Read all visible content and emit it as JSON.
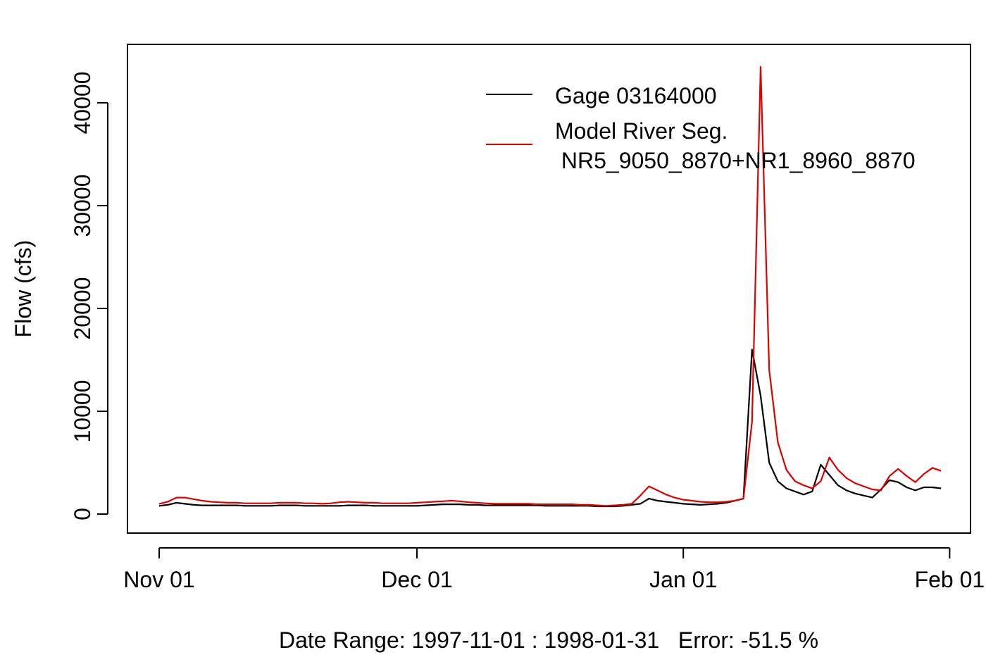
{
  "chart_data": {
    "type": "line",
    "title": "",
    "xlabel": "Date Range: 1997-11-01 : 1998-01-31   Error: -51.5 %",
    "ylabel": "Flow (cfs)",
    "xlim": [
      "1997-11-01",
      "1998-01-31"
    ],
    "ylim": [
      0,
      44000
    ],
    "x_ticks": [
      {
        "date": "1997-11-01",
        "label": "Nov 01"
      },
      {
        "date": "1997-12-01",
        "label": "Dec 01"
      },
      {
        "date": "1998-01-01",
        "label": "Jan 01"
      },
      {
        "date": "1998-02-01",
        "label": "Feb 01"
      }
    ],
    "y_ticks": [
      0,
      10000,
      20000,
      30000,
      40000
    ],
    "y_tick_labels": [
      "0",
      "10000",
      "20000",
      "30000",
      "40000"
    ],
    "grid": false,
    "legend_position": "top-right",
    "x": [
      "1997-11-01",
      "1997-11-02",
      "1997-11-03",
      "1997-11-04",
      "1997-11-05",
      "1997-11-06",
      "1997-11-07",
      "1997-11-08",
      "1997-11-09",
      "1997-11-10",
      "1997-11-11",
      "1997-11-12",
      "1997-11-13",
      "1997-11-14",
      "1997-11-15",
      "1997-11-16",
      "1997-11-17",
      "1997-11-18",
      "1997-11-19",
      "1997-11-20",
      "1997-11-21",
      "1997-11-22",
      "1997-11-23",
      "1997-11-24",
      "1997-11-25",
      "1997-11-26",
      "1997-11-27",
      "1997-11-28",
      "1997-11-29",
      "1997-11-30",
      "1997-12-01",
      "1997-12-02",
      "1997-12-03",
      "1997-12-04",
      "1997-12-05",
      "1997-12-06",
      "1997-12-07",
      "1997-12-08",
      "1997-12-09",
      "1997-12-10",
      "1997-12-11",
      "1997-12-12",
      "1997-12-13",
      "1997-12-14",
      "1997-12-15",
      "1997-12-16",
      "1997-12-17",
      "1997-12-18",
      "1997-12-19",
      "1997-12-20",
      "1997-12-21",
      "1997-12-22",
      "1997-12-23",
      "1997-12-24",
      "1997-12-25",
      "1997-12-26",
      "1997-12-27",
      "1997-12-28",
      "1997-12-29",
      "1997-12-30",
      "1997-12-31",
      "1998-01-01",
      "1998-01-02",
      "1998-01-03",
      "1998-01-04",
      "1998-01-05",
      "1998-01-06",
      "1998-01-07",
      "1998-01-08",
      "1998-01-09",
      "1998-01-10",
      "1998-01-11",
      "1998-01-12",
      "1998-01-13",
      "1998-01-14",
      "1998-01-15",
      "1998-01-16",
      "1998-01-17",
      "1998-01-18",
      "1998-01-19",
      "1998-01-20",
      "1998-01-21",
      "1998-01-22",
      "1998-01-23",
      "1998-01-24",
      "1998-01-25",
      "1998-01-26",
      "1998-01-27",
      "1998-01-28",
      "1998-01-29",
      "1998-01-30",
      "1998-01-31"
    ],
    "series": [
      {
        "name": "Gage 03164000",
        "color": "#000000",
        "values": [
          800,
          900,
          1100,
          1000,
          900,
          850,
          850,
          850,
          850,
          850,
          800,
          800,
          800,
          800,
          850,
          850,
          850,
          800,
          800,
          800,
          800,
          800,
          850,
          850,
          850,
          800,
          800,
          800,
          800,
          800,
          800,
          850,
          900,
          950,
          950,
          950,
          900,
          900,
          850,
          850,
          850,
          850,
          850,
          850,
          850,
          800,
          800,
          800,
          800,
          800,
          800,
          750,
          750,
          750,
          800,
          900,
          1000,
          1500,
          1300,
          1200,
          1100,
          1000,
          950,
          900,
          950,
          1000,
          1100,
          1300,
          1500,
          16000,
          11500,
          5000,
          3200,
          2500,
          2200,
          1900,
          2200,
          4800,
          3800,
          2800,
          2300,
          2000,
          1800,
          1600,
          2400,
          3300,
          3100,
          2600,
          2300,
          2600,
          2600,
          2500
        ]
      },
      {
        "name": "Model River Seg.\n NR5_9050_8870+NR1_8960_8870",
        "color": "#e00000",
        "values": [
          1000,
          1200,
          1600,
          1600,
          1450,
          1300,
          1200,
          1150,
          1100,
          1100,
          1050,
          1050,
          1050,
          1050,
          1100,
          1100,
          1100,
          1050,
          1050,
          1000,
          1050,
          1150,
          1200,
          1150,
          1100,
          1100,
          1050,
          1050,
          1050,
          1050,
          1100,
          1150,
          1200,
          1250,
          1300,
          1250,
          1150,
          1100,
          1050,
          1000,
          1000,
          1000,
          1000,
          1000,
          950,
          950,
          950,
          950,
          950,
          900,
          900,
          850,
          800,
          850,
          900,
          1000,
          1800,
          2700,
          2300,
          1900,
          1600,
          1400,
          1300,
          1200,
          1150,
          1150,
          1200,
          1300,
          1500,
          9000,
          43500,
          14000,
          7000,
          4300,
          3200,
          2800,
          2500,
          3200,
          5500,
          4300,
          3500,
          3000,
          2700,
          2400,
          2300,
          3700,
          4400,
          3700,
          3100,
          3900,
          4500,
          4200
        ]
      }
    ]
  }
}
